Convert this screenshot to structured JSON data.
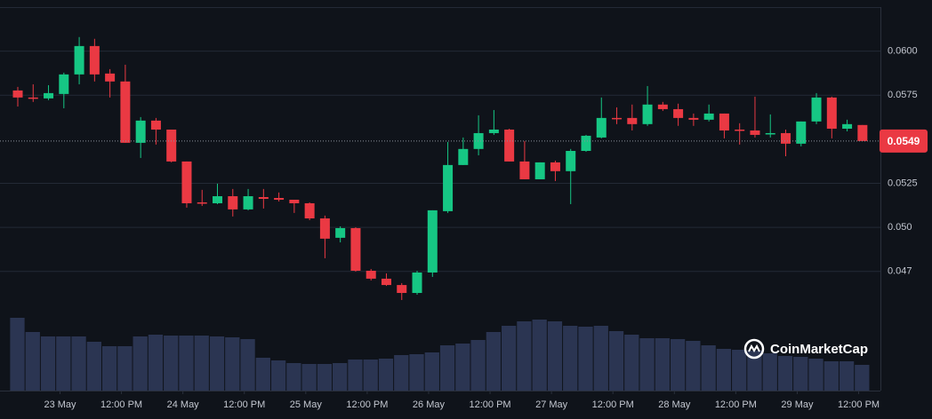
{
  "chart_data": {
    "type": "candlestick",
    "up_color": "#16c784",
    "down_color": "#ea3943",
    "volume_color": "#2b3552",
    "grid": true,
    "ylim": [
      0.04074,
      0.0625
    ],
    "yticks": [
      {
        "value": 0.06,
        "label": "0.0600"
      },
      0.0575,
      0.0525,
      {
        "value": 0.05,
        "label": "0.050"
      },
      {
        "value": 0.0475,
        "label": "0.047"
      }
    ],
    "xticks": [
      {
        "value": 2.75,
        "label": "23 May"
      },
      {
        "value": 6.75,
        "label": "12:00 PM"
      },
      {
        "value": 10.75,
        "label": "24 May"
      },
      {
        "value": 14.75,
        "label": "12:00 PM"
      },
      {
        "value": 18.75,
        "label": "25 May"
      },
      {
        "value": 22.75,
        "label": "12:00 PM"
      },
      {
        "value": 26.75,
        "label": "26 May"
      },
      {
        "value": 30.75,
        "label": "12:00 PM"
      },
      {
        "value": 34.75,
        "label": "27 May"
      },
      {
        "value": 38.75,
        "label": "12:00 PM"
      },
      {
        "value": 42.75,
        "label": "28 May"
      },
      {
        "value": 46.75,
        "label": "12:00 PM"
      },
      {
        "value": 50.75,
        "label": "29 May"
      },
      {
        "value": 54.75,
        "label": "12:00 PM"
      }
    ],
    "last_price": 0.0549,
    "watermark": "CoinMarketCap",
    "open": [
      0.05777,
      0.05737,
      0.05732,
      0.05757,
      0.05868,
      0.06029,
      0.05873,
      0.05828,
      0.0548,
      0.05606,
      0.05555,
      0.05374,
      0.05142,
      0.05137,
      0.05177,
      0.05102,
      0.05172,
      0.05167,
      0.05157,
      0.05137,
      0.05051,
      0.04941,
      0.04996,
      0.04754,
      0.04709,
      0.04673,
      0.04628,
      0.04744,
      0.05092,
      0.05354,
      0.05445,
      0.05535,
      0.05555,
      0.05374,
      0.05273,
      0.05369,
      0.05319,
      0.05434,
      0.0551,
      0.05621,
      0.05621,
      0.05586,
      0.05697,
      0.05671,
      0.05621,
      0.05611,
      0.05646,
      0.05555,
      0.0555,
      0.0553,
      0.05535,
      0.05475,
      0.05601,
      0.05737,
      0.0556,
      0.05581
    ],
    "high": [
      0.05797,
      0.05812,
      0.05807,
      0.05878,
      0.0608,
      0.0607,
      0.05898,
      0.05923,
      0.05626,
      0.05621,
      0.05555,
      0.05374,
      0.05213,
      0.05248,
      0.05218,
      0.05218,
      0.05218,
      0.05198,
      0.05157,
      0.05142,
      0.05067,
      0.05006,
      0.05001,
      0.04764,
      0.04739,
      0.04684,
      0.04754,
      0.05097,
      0.05485,
      0.0551,
      0.05636,
      0.05666,
      0.0556,
      0.0549,
      0.05369,
      0.05379,
      0.05445,
      0.05525,
      0.05737,
      0.05681,
      0.05697,
      0.05802,
      0.05712,
      0.05702,
      0.05646,
      0.05697,
      0.05646,
      0.05591,
      0.05742,
      0.05641,
      0.05555,
      0.05601,
      0.05762,
      0.05742,
      0.05611,
      0.05581
    ],
    "low": [
      0.05686,
      0.05712,
      0.05722,
      0.05676,
      0.05812,
      0.05828,
      0.05737,
      0.0548,
      0.05394,
      0.0547,
      0.05369,
      0.05112,
      0.05122,
      0.05132,
      0.05062,
      0.05097,
      0.05107,
      0.05147,
      0.05082,
      0.05041,
      0.04825,
      0.04915,
      0.04749,
      0.04699,
      0.04668,
      0.04588,
      0.04618,
      0.04719,
      0.05082,
      0.05354,
      0.05409,
      0.05525,
      0.05374,
      0.05273,
      0.05273,
      0.05263,
      0.05132,
      0.05429,
      0.05505,
      0.05586,
      0.0555,
      0.05576,
      0.05661,
      0.05576,
      0.05576,
      0.05601,
      0.05505,
      0.0547,
      0.0551,
      0.0551,
      0.05404,
      0.0546,
      0.05586,
      0.05505,
      0.05545,
      0.055
    ],
    "close": [
      0.05737,
      0.05732,
      0.05762,
      0.05868,
      0.06029,
      0.05868,
      0.05828,
      0.0548,
      0.05606,
      0.05555,
      0.05374,
      0.05137,
      0.05137,
      0.05177,
      0.05102,
      0.05177,
      0.05162,
      0.05157,
      0.05137,
      0.05051,
      0.04936,
      0.04996,
      0.04754,
      0.04709,
      0.04673,
      0.04628,
      0.04744,
      0.05097,
      0.05354,
      0.05445,
      0.05535,
      0.05555,
      0.05374,
      0.05273,
      0.05369,
      0.05319,
      0.05434,
      0.0552,
      0.05621,
      0.05616,
      0.05586,
      0.05697,
      0.05671,
      0.05621,
      0.05611,
      0.05646,
      0.0555,
      0.0555,
      0.05525,
      0.05535,
      0.05475,
      0.05601,
      0.05737,
      0.0556,
      0.05586,
      0.0549
    ],
    "volume": [
      82,
      66,
      61,
      61,
      61,
      55,
      50,
      50,
      61,
      63,
      62,
      62,
      62,
      61,
      60,
      58,
      37,
      34,
      31,
      30,
      30,
      31,
      35,
      35,
      36,
      40,
      41,
      43,
      51,
      53,
      57,
      66,
      73,
      78,
      80,
      78,
      73,
      72,
      73,
      67,
      63,
      59,
      59,
      58,
      56,
      51,
      47,
      46,
      45,
      42,
      39,
      38,
      36,
      33,
      33,
      29
    ]
  }
}
